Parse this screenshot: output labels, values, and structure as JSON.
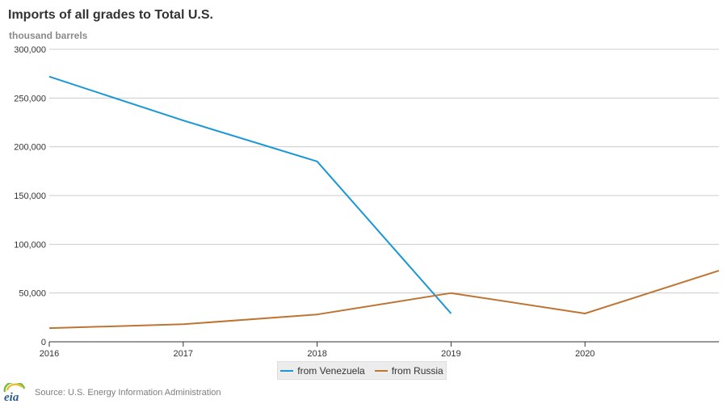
{
  "chart_data": {
    "type": "line",
    "title": "Imports of all grades to Total U.S.",
    "ylabel": "thousand barrels",
    "xlim": [
      2016,
      2021
    ],
    "ylim": [
      0,
      300000
    ],
    "x_ticks": [
      2016,
      2017,
      2018,
      2019,
      2020
    ],
    "y_ticks": [
      0,
      50000,
      100000,
      150000,
      200000,
      250000,
      300000
    ],
    "y_tick_labels": [
      "0",
      "50,000",
      "100,000",
      "150,000",
      "200,000",
      "250,000",
      "300,000"
    ],
    "grid": true,
    "legend_position": "bottom-center",
    "series": [
      {
        "name": "from Venezuela",
        "color": "#1a97d5",
        "x": [
          2016,
          2017,
          2018,
          2019
        ],
        "values": [
          272000,
          227000,
          185000,
          29000
        ]
      },
      {
        "name": "from Russia",
        "color": "#bd7534",
        "x": [
          2016,
          2017,
          2018,
          2019,
          2020,
          2021
        ],
        "values": [
          14000,
          18000,
          28000,
          50000,
          29000,
          73000
        ]
      }
    ]
  },
  "footer": {
    "source": "Source: U.S. Energy Information Administration",
    "logo_text": "eia"
  }
}
